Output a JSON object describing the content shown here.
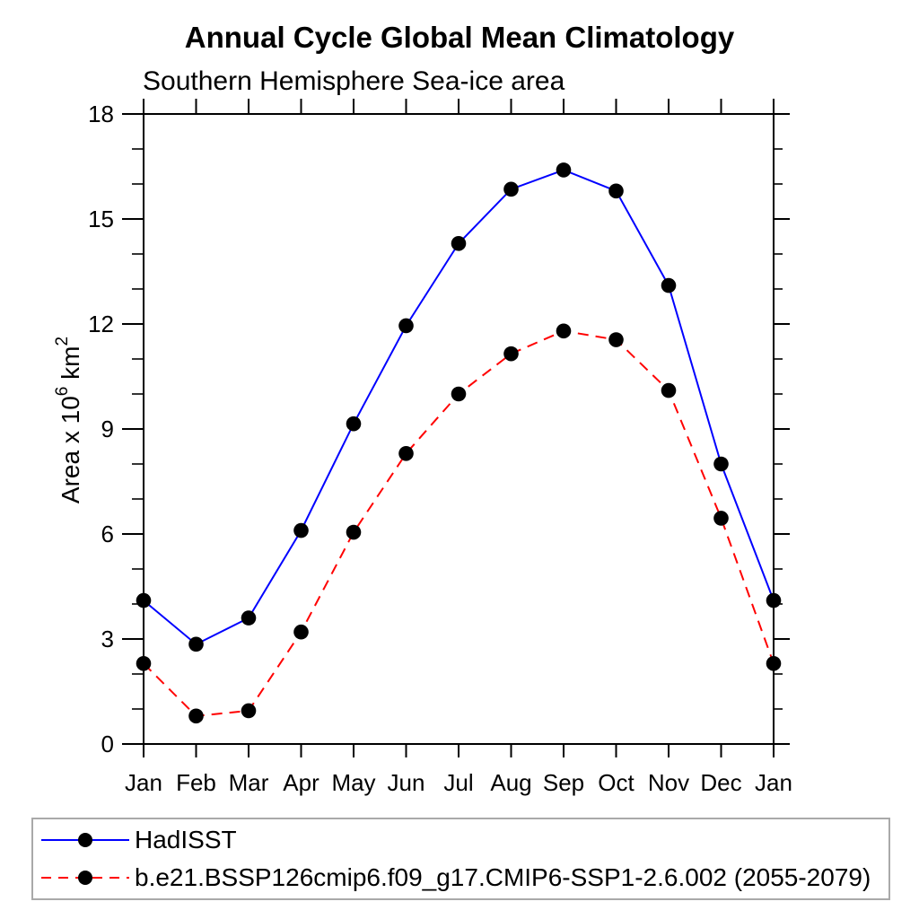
{
  "title": "Annual Cycle Global Mean Climatology",
  "subtitle": "Southern Hemisphere Sea-ice area",
  "chart_data": {
    "type": "line",
    "x_categories": [
      "Jan",
      "Feb",
      "Mar",
      "Apr",
      "May",
      "Jun",
      "Jul",
      "Aug",
      "Sep",
      "Oct",
      "Nov",
      "Dec",
      "Jan"
    ],
    "series": [
      {
        "name": "HadISST",
        "color": "#0000ff",
        "line_style": "solid",
        "marker": "filled-circle",
        "marker_color": "#000000",
        "values": [
          4.1,
          2.85,
          3.6,
          6.1,
          9.15,
          11.95,
          14.3,
          15.85,
          16.4,
          15.8,
          13.1,
          8.0,
          4.1
        ]
      },
      {
        "name": "b.e21.BSSP126cmip6.f09_g17.CMIP6-SSP1-2.6.002 (2055-2079)",
        "color": "#ff0000",
        "line_style": "dashed",
        "marker": "filled-circle",
        "marker_color": "#000000",
        "values": [
          2.3,
          0.8,
          0.95,
          3.2,
          6.05,
          8.3,
          10.0,
          11.15,
          11.8,
          11.55,
          10.1,
          6.45,
          2.3
        ]
      }
    ],
    "ylabel": "Area x 10⁶ km²",
    "ylabel_parts": [
      {
        "text": "Area x 10",
        "sup": false
      },
      {
        "text": "6",
        "sup": true
      },
      {
        "text": " km",
        "sup": false
      },
      {
        "text": "2",
        "sup": true
      }
    ],
    "xlabel": "",
    "ylim": [
      0,
      18
    ],
    "y_major_step": 3,
    "y_minor_step": 1,
    "grid": false,
    "legend_position": "bottom-left"
  },
  "colors": {
    "background": "#ffffff",
    "axis": "#000000",
    "text": "#000000",
    "legend_border": "#a9a9a9"
  }
}
